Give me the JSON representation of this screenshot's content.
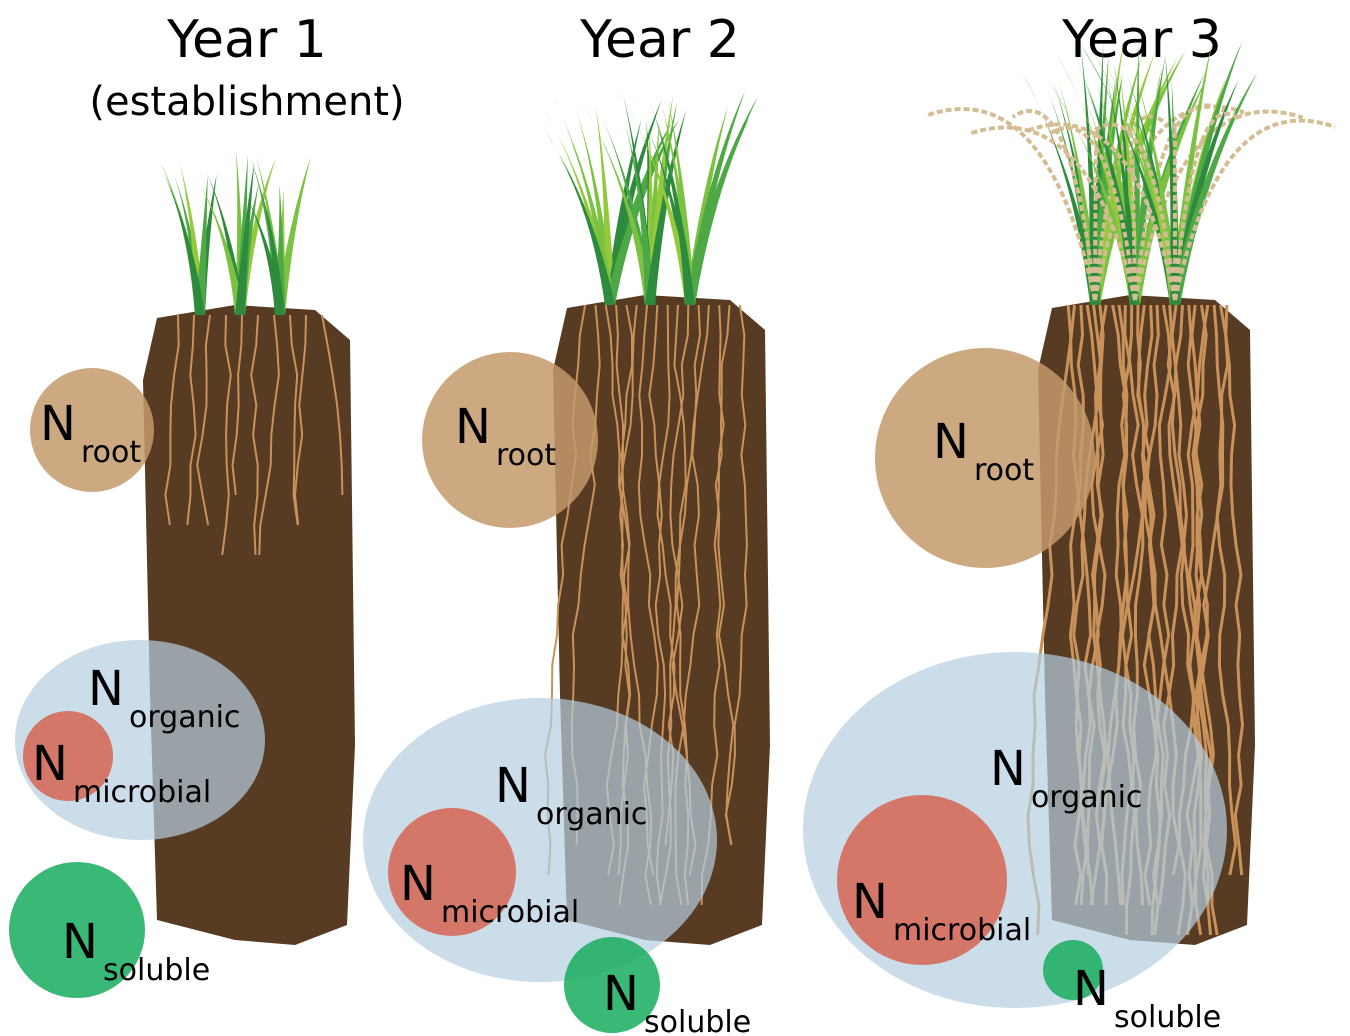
{
  "panels": [
    {
      "title": "Year 1",
      "subtitle": "(establishment)",
      "pools": [
        {
          "symbol": "N",
          "subscript": "root"
        },
        {
          "symbol": "N",
          "subscript": "organic"
        },
        {
          "symbol": "N",
          "subscript": "microbial"
        },
        {
          "symbol": "N",
          "subscript": "soluble"
        }
      ]
    },
    {
      "title": "Year 2",
      "pools": [
        {
          "symbol": "N",
          "subscript": "root"
        },
        {
          "symbol": "N",
          "subscript": "organic"
        },
        {
          "symbol": "N",
          "subscript": "microbial"
        },
        {
          "symbol": "N",
          "subscript": "soluble"
        }
      ]
    },
    {
      "title": "Year 3",
      "pools": [
        {
          "symbol": "N",
          "subscript": "root"
        },
        {
          "symbol": "N",
          "subscript": "organic"
        },
        {
          "symbol": "N",
          "subscript": "microbial"
        },
        {
          "symbol": "N",
          "subscript": "soluble"
        }
      ]
    }
  ]
}
